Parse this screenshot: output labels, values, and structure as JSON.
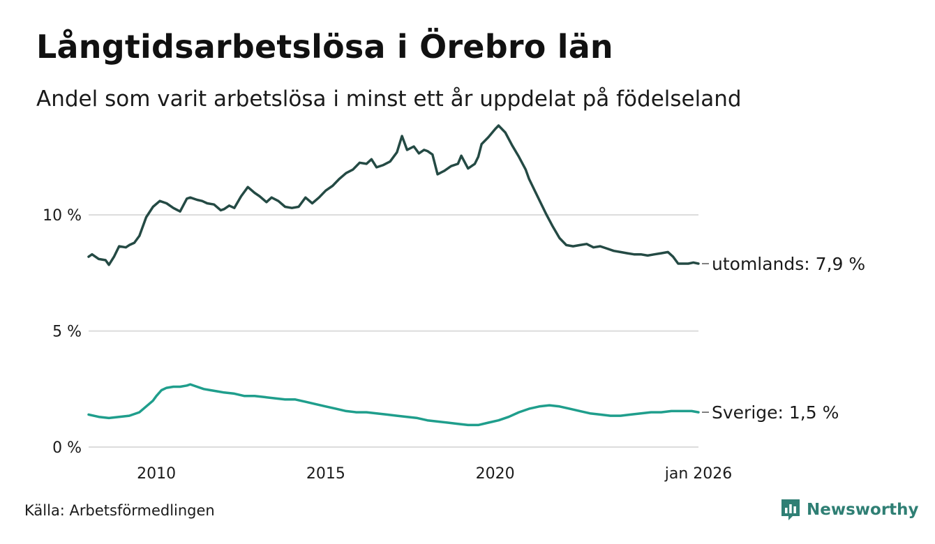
{
  "title": "Långtidsarbetslösa i Örebro län",
  "subtitle": "Andel som varit arbetslösa i minst ett år uppdelat på födelseland",
  "source": "Källa: Arbetsförmedlingen",
  "brand": {
    "name": "Newsworthy",
    "color": "#2f7f74",
    "icon": "newsworthy-chart-icon"
  },
  "colors": {
    "utomlands": "#244a44",
    "sverige": "#1f9e8c",
    "grid": "#dcdcdc"
  },
  "chart_data": {
    "type": "line",
    "title": "Långtidsarbetslösa i Örebro län",
    "xlabel": "",
    "ylabel": "",
    "xlim": [
      2008.0,
      2026.0
    ],
    "ylim": [
      0,
      14
    ],
    "yticks": [
      {
        "value": 0,
        "label": "0 %"
      },
      {
        "value": 5,
        "label": "5 %"
      },
      {
        "value": 10,
        "label": "10 %"
      }
    ],
    "xticks": [
      {
        "value": 2010,
        "label": "2010"
      },
      {
        "value": 2015,
        "label": "2015"
      },
      {
        "value": 2020,
        "label": "2020"
      },
      {
        "value": 2026.0,
        "label": "jan 2026"
      }
    ],
    "grid": true,
    "series": [
      {
        "name": "utomlands",
        "end_label": "utomlands: 7,9 %",
        "x": [
          2008.0,
          2008.1,
          2008.3,
          2008.5,
          2008.6,
          2008.75,
          2008.9,
          2009.1,
          2009.2,
          2009.35,
          2009.5,
          2009.7,
          2009.9,
          2010.1,
          2010.3,
          2010.5,
          2010.7,
          2010.9,
          2011.0,
          2011.2,
          2011.35,
          2011.5,
          2011.7,
          2011.9,
          2012.0,
          2012.15,
          2012.3,
          2012.5,
          2012.7,
          2012.9,
          2013.05,
          2013.25,
          2013.4,
          2013.6,
          2013.8,
          2014.0,
          2014.2,
          2014.4,
          2014.6,
          2014.8,
          2015.0,
          2015.2,
          2015.4,
          2015.6,
          2015.8,
          2016.0,
          2016.2,
          2016.35,
          2016.5,
          2016.7,
          2016.9,
          2017.1,
          2017.25,
          2017.4,
          2017.6,
          2017.75,
          2017.9,
          2018.0,
          2018.15,
          2018.3,
          2018.5,
          2018.7,
          2018.9,
          2019.0,
          2019.2,
          2019.4,
          2019.5,
          2019.6,
          2019.8,
          2020.0,
          2020.1,
          2020.3,
          2020.5,
          2020.7,
          2020.9,
          2021.0,
          2021.2,
          2021.35,
          2021.5,
          2021.7,
          2021.9,
          2022.1,
          2022.3,
          2022.5,
          2022.7,
          2022.9,
          2023.1,
          2023.3,
          2023.5,
          2023.7,
          2023.9,
          2024.1,
          2024.3,
          2024.5,
          2024.7,
          2024.9,
          2025.1,
          2025.25,
          2025.4,
          2025.55,
          2025.7,
          2025.85,
          2026.0
        ],
        "values": [
          8.2,
          8.3,
          8.1,
          8.05,
          7.85,
          8.2,
          8.65,
          8.6,
          8.7,
          8.8,
          9.1,
          9.9,
          10.35,
          10.6,
          10.5,
          10.3,
          10.15,
          10.7,
          10.75,
          10.65,
          10.6,
          10.5,
          10.45,
          10.2,
          10.25,
          10.4,
          10.3,
          10.8,
          11.2,
          10.95,
          10.8,
          10.55,
          10.75,
          10.6,
          10.35,
          10.3,
          10.35,
          10.75,
          10.5,
          10.75,
          11.05,
          11.25,
          11.55,
          11.8,
          11.95,
          12.25,
          12.2,
          12.4,
          12.05,
          12.15,
          12.3,
          12.7,
          13.4,
          12.8,
          12.95,
          12.65,
          12.8,
          12.75,
          12.6,
          11.75,
          11.9,
          12.1,
          12.2,
          12.55,
          12.0,
          12.2,
          12.5,
          13.05,
          13.35,
          13.7,
          13.85,
          13.55,
          13.0,
          12.5,
          11.95,
          11.55,
          10.95,
          10.5,
          10.05,
          9.5,
          9.0,
          8.7,
          8.65,
          8.7,
          8.75,
          8.6,
          8.65,
          8.55,
          8.45,
          8.4,
          8.35,
          8.3,
          8.3,
          8.25,
          8.3,
          8.35,
          8.4,
          8.2,
          7.9,
          7.9,
          7.9,
          7.95,
          7.9
        ]
      },
      {
        "name": "Sverige",
        "end_label": "Sverige: 1,5 %",
        "x": [
          2008.0,
          2008.3,
          2008.6,
          2008.9,
          2009.2,
          2009.5,
          2009.7,
          2009.9,
          2010.0,
          2010.15,
          2010.3,
          2010.5,
          2010.7,
          2010.9,
          2011.0,
          2011.2,
          2011.4,
          2011.6,
          2011.8,
          2012.0,
          2012.3,
          2012.6,
          2012.9,
          2013.2,
          2013.5,
          2013.8,
          2014.1,
          2014.4,
          2014.7,
          2015.0,
          2015.3,
          2015.6,
          2015.9,
          2016.2,
          2016.5,
          2016.8,
          2017.1,
          2017.4,
          2017.7,
          2018.0,
          2018.3,
          2018.6,
          2018.9,
          2019.2,
          2019.5,
          2019.8,
          2020.1,
          2020.4,
          2020.7,
          2021.0,
          2021.3,
          2021.6,
          2021.9,
          2022.2,
          2022.5,
          2022.8,
          2023.1,
          2023.4,
          2023.7,
          2024.0,
          2024.3,
          2024.6,
          2024.9,
          2025.2,
          2025.5,
          2025.8,
          2026.0
        ],
        "values": [
          1.4,
          1.3,
          1.25,
          1.3,
          1.35,
          1.5,
          1.75,
          2.0,
          2.2,
          2.45,
          2.55,
          2.6,
          2.6,
          2.65,
          2.7,
          2.6,
          2.5,
          2.45,
          2.4,
          2.35,
          2.3,
          2.2,
          2.2,
          2.15,
          2.1,
          2.05,
          2.05,
          1.95,
          1.85,
          1.75,
          1.65,
          1.55,
          1.5,
          1.5,
          1.45,
          1.4,
          1.35,
          1.3,
          1.25,
          1.15,
          1.1,
          1.05,
          1.0,
          0.95,
          0.95,
          1.05,
          1.15,
          1.3,
          1.5,
          1.65,
          1.75,
          1.8,
          1.75,
          1.65,
          1.55,
          1.45,
          1.4,
          1.35,
          1.35,
          1.4,
          1.45,
          1.5,
          1.5,
          1.55,
          1.55,
          1.55,
          1.5
        ]
      }
    ]
  }
}
